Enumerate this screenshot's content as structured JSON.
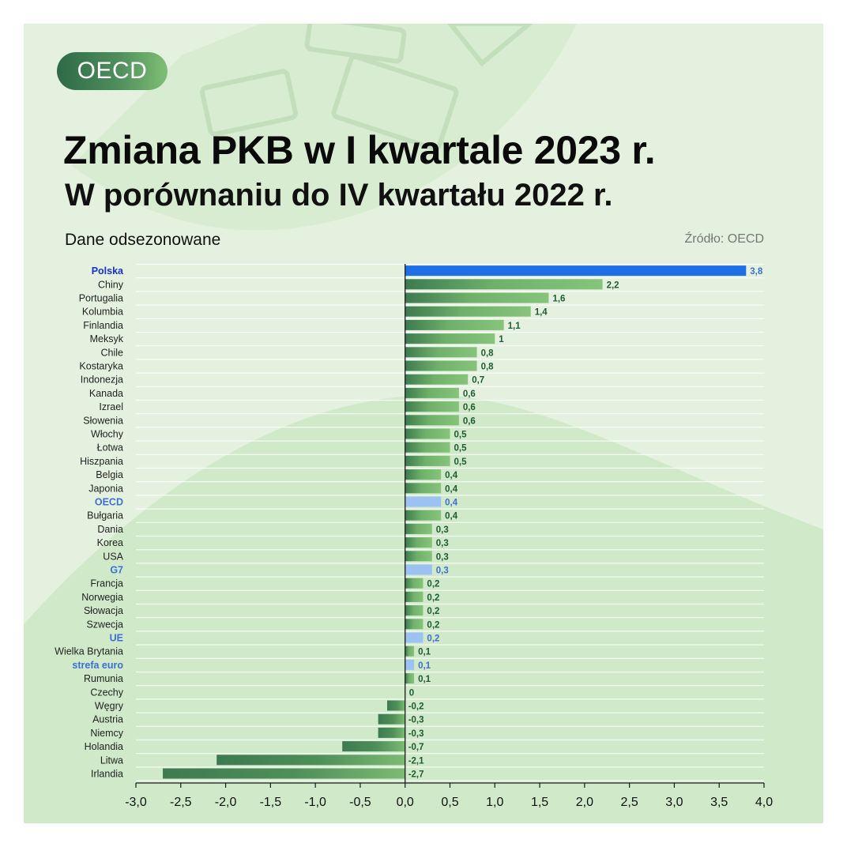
{
  "badge": {
    "label": "OECD"
  },
  "header": {
    "title": "Zmiana PKB w I kwartale 2023 r.",
    "subtitle": "W porównaniu do IV kwartału 2022 r.",
    "note": "Dane odsezonowane",
    "source": "Źródło: OECD"
  },
  "colors": {
    "panel_bg": "#cfe9c9",
    "bar_green": "#6fb06a",
    "bar_green_dark": "#3d7a50",
    "bar_poland": "#1e6ee6",
    "bar_aggregate": "#9cc2f3",
    "label_poland": "#1a2fd0",
    "label_aggregate": "#3d6fd4",
    "value_text": "#1f5c33"
  },
  "chart_data": {
    "type": "bar",
    "orientation": "horizontal",
    "title": "Zmiana PKB w I kwartale 2023 r.",
    "subtitle": "W porównaniu do IV kwartału 2022 r.",
    "xlabel": "",
    "ylabel": "",
    "xlim": [
      -3.0,
      4.0
    ],
    "x_ticks": [
      "-3,0",
      "-2,5",
      "-2,0",
      "-1,5",
      "-1,0",
      "-0,5",
      "0,0",
      "0,5",
      "1,0",
      "1,5",
      "2,0",
      "2,5",
      "3,0",
      "3,5",
      "4,0"
    ],
    "x_tick_values": [
      -3.0,
      -2.5,
      -2.0,
      -1.5,
      -1.0,
      -0.5,
      0.0,
      0.5,
      1.0,
      1.5,
      2.0,
      2.5,
      3.0,
      3.5,
      4.0
    ],
    "grid": true,
    "categories": [
      "Polska",
      "Chiny",
      "Portugalia",
      "Kolumbia",
      "Finlandia",
      "Meksyk",
      "Chile",
      "Kostaryka",
      "Indonezja",
      "Kanada",
      "Izrael",
      "Słowenia",
      "Włochy",
      "Łotwa",
      "Hiszpania",
      "Belgia",
      "Japonia",
      "OECD",
      "Bułgaria",
      "Dania",
      "Korea",
      "USA",
      "G7",
      "Francja",
      "Norwegia",
      "Słowacja",
      "Szwecja",
      "UE",
      "Wielka Brytania",
      "strefa euro",
      "Rumunia",
      "Czechy",
      "Węgry",
      "Austria",
      "Niemcy",
      "Holandia",
      "Litwa",
      "Irlandia"
    ],
    "values": [
      3.8,
      2.2,
      1.6,
      1.4,
      1.1,
      1,
      0.8,
      0.8,
      0.7,
      0.6,
      0.6,
      0.6,
      0.5,
      0.5,
      0.5,
      0.4,
      0.4,
      0.4,
      0.4,
      0.3,
      0.3,
      0.3,
      0.3,
      0.2,
      0.2,
      0.2,
      0.2,
      0.2,
      0.1,
      0.1,
      0.1,
      0,
      -0.2,
      -0.3,
      -0.3,
      -0.7,
      -2.1,
      -2.7
    ],
    "value_labels": [
      "3,8",
      "2,2",
      "1,6",
      "1,4",
      "1,1",
      "1",
      "0,8",
      "0,8",
      "0,7",
      "0,6",
      "0,6",
      "0,6",
      "0,5",
      "0,5",
      "0,5",
      "0,4",
      "0,4",
      "0,4",
      "0,4",
      "0,3",
      "0,3",
      "0,3",
      "0,3",
      "0,2",
      "0,2",
      "0,2",
      "0,2",
      "0,2",
      "0,1",
      "0,1",
      "0,1",
      "0",
      "-0,2",
      "-0,3",
      "-0,3",
      "-0,7",
      "-2,1",
      "-2,7"
    ],
    "highlight": {
      "Polska": "poland",
      "OECD": "aggregate",
      "G7": "aggregate",
      "UE": "aggregate",
      "strefa euro": "aggregate"
    }
  }
}
